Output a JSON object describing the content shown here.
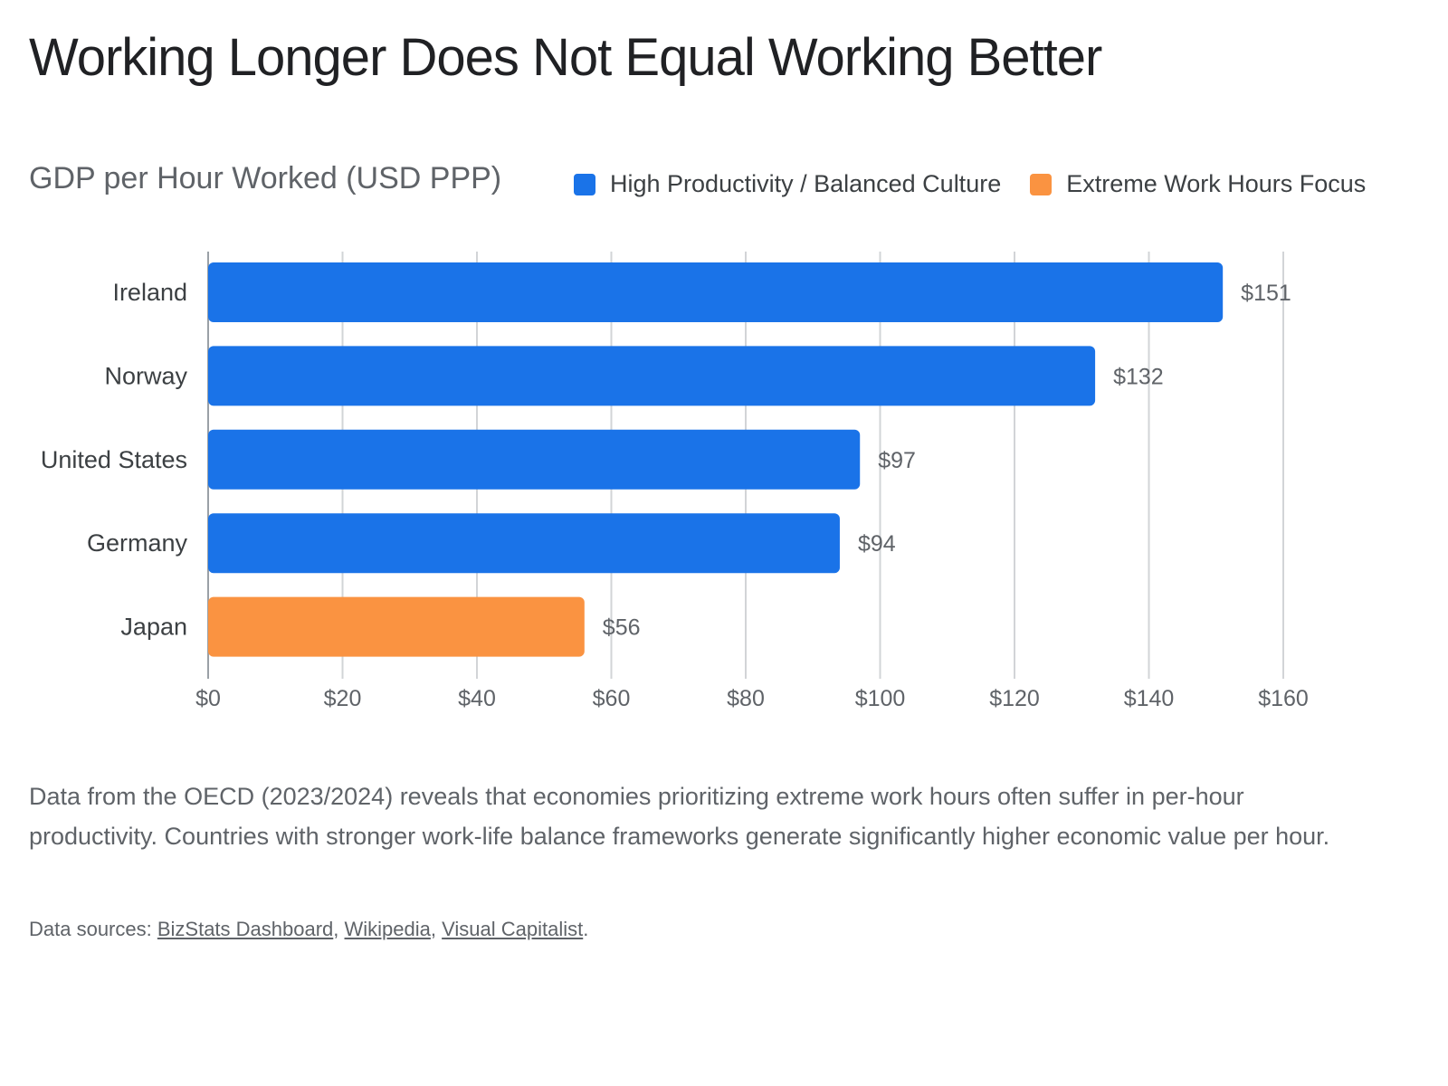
{
  "page": {
    "title": "Working Longer Does Not Equal Working Better",
    "description": "Data from the OECD (2023/2024) reveals that economies prioritizing extreme work hours often suffer in per-hour productivity. Countries with stronger work-life balance frameworks generate significantly higher economic value per hour.",
    "sources": {
      "prefix": "Data sources: ",
      "links": [
        "BizStats Dashboard",
        "Wikipedia",
        "Visual Capitalist"
      ],
      "separator": ", ",
      "suffix": "."
    }
  },
  "legend": [
    {
      "label": "High Productivity / Balanced Culture",
      "color": "#1a73e8"
    },
    {
      "label": "Extreme Work Hours Focus",
      "color": "#fa9341"
    }
  ],
  "chart_data": {
    "type": "bar",
    "orientation": "horizontal",
    "title": "GDP per Hour Worked (USD PPP)",
    "categories": [
      "Ireland",
      "Norway",
      "United States",
      "Germany",
      "Japan"
    ],
    "values": [
      151,
      132,
      97,
      94,
      56
    ],
    "groups": [
      0,
      0,
      0,
      0,
      1
    ],
    "value_labels": [
      "$151",
      "$132",
      "$97",
      "$94",
      "$56"
    ],
    "xlim": [
      0,
      160
    ],
    "x_ticks": [
      0,
      20,
      40,
      60,
      80,
      100,
      120,
      140,
      160
    ],
    "x_tick_labels": [
      "$0",
      "$20",
      "$40",
      "$60",
      "$80",
      "$100",
      "$120",
      "$140",
      "$160"
    ],
    "grid": true,
    "legend_position": "top-right"
  }
}
